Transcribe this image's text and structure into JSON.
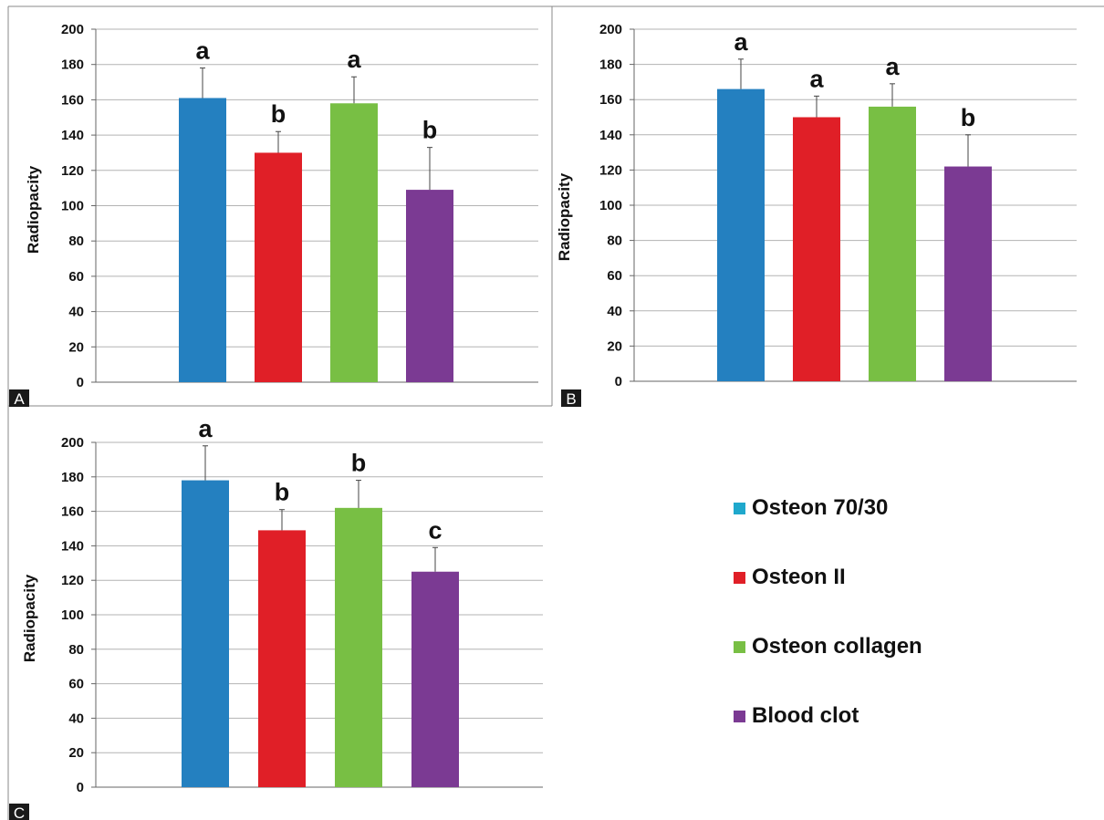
{
  "colors": {
    "osteon_70_30_bar": "#2480c0",
    "osteon_70_30_legend": "#1fa8cc",
    "osteon_ii": "#e01f27",
    "osteon_collagen": "#78bf44",
    "blood_clot": "#7b3a93",
    "grid": "#b3b3b3",
    "axis": "#666666",
    "frame": "#888888",
    "panel_tag_bg": "#1a1a1a",
    "panel_tag_text": "#ffffff"
  },
  "legend": [
    {
      "label": "Osteon 70/30",
      "color": "#1fa8cc"
    },
    {
      "label": "Osteon II",
      "color": "#e01f27"
    },
    {
      "label": "Osteon collagen",
      "color": "#78bf44"
    },
    {
      "label": "Blood clot",
      "color": "#7b3a93"
    }
  ],
  "chart_data": [
    {
      "panel": "A",
      "type": "bar",
      "ylabel": "Radiopacity",
      "ylim": [
        0,
        200
      ],
      "yticks": [
        0,
        20,
        40,
        60,
        80,
        100,
        120,
        140,
        160,
        180,
        200
      ],
      "grid": true,
      "categories": [
        "Osteon 70/30",
        "Osteon II",
        "Osteon collagen",
        "Blood clot"
      ],
      "values": [
        161,
        130,
        158,
        109
      ],
      "errors": [
        17,
        12,
        15,
        24
      ],
      "significance": [
        "a",
        "b",
        "a",
        "b"
      ]
    },
    {
      "panel": "B",
      "type": "bar",
      "ylabel": "Radiopacity",
      "ylim": [
        0,
        200
      ],
      "yticks": [
        0,
        20,
        40,
        60,
        80,
        100,
        120,
        140,
        160,
        180,
        200
      ],
      "grid": true,
      "categories": [
        "Osteon 70/30",
        "Osteon II",
        "Osteon collagen",
        "Blood clot"
      ],
      "values": [
        166,
        150,
        156,
        122
      ],
      "errors": [
        17,
        12,
        13,
        18
      ],
      "significance": [
        "a",
        "a",
        "a",
        "b"
      ]
    },
    {
      "panel": "C",
      "type": "bar",
      "ylabel": "Radiopacity",
      "ylim": [
        0,
        200
      ],
      "yticks": [
        0,
        20,
        40,
        60,
        80,
        100,
        120,
        140,
        160,
        180,
        200
      ],
      "grid": true,
      "categories": [
        "Osteon 70/30",
        "Osteon II",
        "Osteon collagen",
        "Blood clot"
      ],
      "values": [
        178,
        149,
        162,
        125
      ],
      "errors": [
        20,
        12,
        16,
        14
      ],
      "significance": [
        "a",
        "b",
        "b",
        "c"
      ]
    }
  ]
}
